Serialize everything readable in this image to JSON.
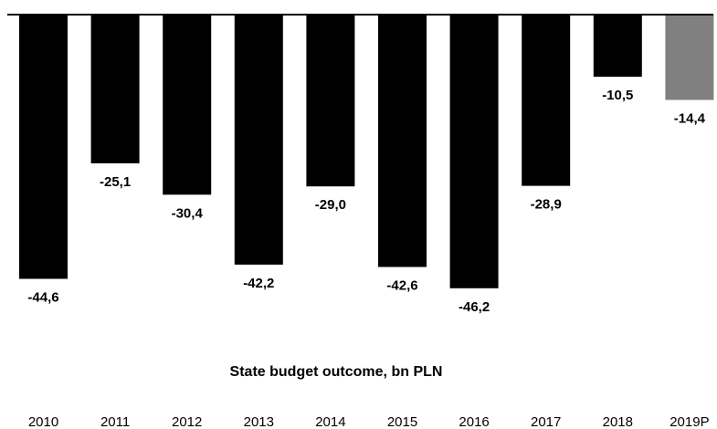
{
  "chart_data": {
    "type": "bar",
    "title": "State budget outcome, bn PLN",
    "xlabel": "",
    "ylabel": "",
    "categories": [
      "2010",
      "2011",
      "2012",
      "2013",
      "2014",
      "2015",
      "2016",
      "2017",
      "2018",
      "2019P"
    ],
    "values": [
      -44.6,
      -25.1,
      -30.4,
      -42.2,
      -29.0,
      -42.6,
      -46.2,
      -28.9,
      -10.5,
      -14.4
    ],
    "value_labels": [
      "-44,6",
      "-25,1",
      "-30,4",
      "-42,2",
      "-29,0",
      "-42,6",
      "-46,2",
      "-28,9",
      "-10,5",
      "-14,4"
    ],
    "projected": [
      false,
      false,
      false,
      false,
      false,
      false,
      false,
      false,
      false,
      true
    ],
    "ylim": [
      -50,
      0
    ],
    "grid": false,
    "legend": "none",
    "colors": {
      "actual": "#000000",
      "projected": "#808080",
      "axis": "#000000"
    }
  }
}
